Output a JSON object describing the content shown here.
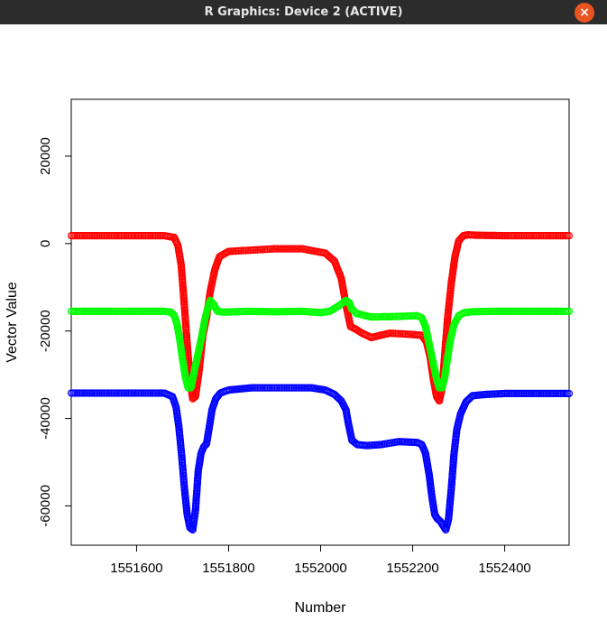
{
  "window": {
    "title": "R Graphics: Device 2 (ACTIVE)",
    "close_icon": "close-icon",
    "close_glyph": "×",
    "accent": "#e95420"
  },
  "chart_data": {
    "type": "scatter",
    "title": "",
    "xlabel": "Number",
    "ylabel": "Vector Value",
    "xlim": [
      1551458,
      1552540
    ],
    "ylim": [
      -69000,
      33000
    ],
    "xticks": [
      1551600,
      1551800,
      1552000,
      1552200,
      1552400
    ],
    "xtick_labels": [
      "1551600",
      "1551800",
      "1552000",
      "1552200",
      "1552400"
    ],
    "yticks": [
      -60000,
      -40000,
      -20000,
      0,
      20000
    ],
    "ytick_labels": [
      "-60000",
      "-40000",
      "-20000",
      "0",
      "20000"
    ],
    "marker": "open-circle",
    "series": [
      {
        "color": "#ff0000",
        "x": [
          1551458,
          1551660,
          1551682,
          1551690,
          1551697,
          1551703,
          1551710,
          1551716,
          1551722,
          1551728,
          1551736,
          1551744,
          1551752,
          1551760,
          1551770,
          1551780,
          1551800,
          1551850,
          1551900,
          1551960,
          1551990,
          1552010,
          1552030,
          1552045,
          1552055,
          1552065,
          1552075,
          1552090,
          1552110,
          1552150,
          1552200,
          1552220,
          1552230,
          1552238,
          1552245,
          1552252,
          1552258,
          1552264,
          1552270,
          1552276,
          1552284,
          1552292,
          1552300,
          1552310,
          1552320,
          1552340,
          1552400,
          1552540
        ],
        "y": [
          1800,
          1800,
          1400,
          -500,
          -5000,
          -13000,
          -23000,
          -31000,
          -35500,
          -35000,
          -29000,
          -21000,
          -17000,
          -11000,
          -6000,
          -3000,
          -1800,
          -1500,
          -1200,
          -1200,
          -1800,
          -2200,
          -4000,
          -8000,
          -14000,
          -19000,
          -19500,
          -20500,
          -21500,
          -20500,
          -20800,
          -21000,
          -22500,
          -26000,
          -31000,
          -35000,
          -36000,
          -33000,
          -25000,
          -17000,
          -9000,
          -3000,
          600,
          1800,
          2000,
          1900,
          1800,
          1800
        ]
      },
      {
        "color": "#00ff00",
        "x": [
          1551458,
          1551660,
          1551675,
          1551682,
          1551688,
          1551694,
          1551700,
          1551706,
          1551712,
          1551718,
          1551724,
          1551730,
          1551736,
          1551742,
          1551748,
          1551754,
          1551760,
          1551768,
          1551776,
          1551790,
          1551840,
          1551900,
          1551960,
          1552000,
          1552020,
          1552040,
          1552055,
          1552062,
          1552068,
          1552078,
          1552090,
          1552110,
          1552160,
          1552210,
          1552220,
          1552228,
          1552236,
          1552244,
          1552252,
          1552258,
          1552264,
          1552270,
          1552276,
          1552282,
          1552290,
          1552300,
          1552312,
          1552330,
          1552370,
          1552540
        ],
        "y": [
          -15500,
          -15500,
          -15700,
          -16500,
          -18500,
          -22000,
          -26500,
          -30500,
          -33000,
          -33000,
          -30000,
          -27000,
          -24000,
          -21000,
          -17500,
          -15000,
          -13000,
          -14000,
          -15500,
          -15700,
          -15500,
          -15600,
          -15500,
          -15800,
          -15500,
          -14200,
          -13000,
          -13500,
          -15000,
          -16000,
          -16300,
          -16800,
          -16700,
          -16500,
          -17000,
          -19000,
          -23000,
          -27000,
          -31000,
          -33000,
          -33000,
          -30500,
          -26000,
          -22000,
          -18500,
          -16500,
          -15800,
          -15600,
          -15500,
          -15500
        ]
      },
      {
        "color": "#0000ff",
        "x": [
          1551458,
          1551660,
          1551678,
          1551686,
          1551692,
          1551698,
          1551704,
          1551710,
          1551716,
          1551722,
          1551728,
          1551734,
          1551740,
          1551746,
          1551752,
          1551758,
          1551764,
          1551772,
          1551782,
          1551800,
          1551850,
          1551900,
          1551950,
          1551980,
          1552010,
          1552030,
          1552045,
          1552055,
          1552060,
          1552068,
          1552080,
          1552100,
          1552130,
          1552170,
          1552210,
          1552220,
          1552228,
          1552236,
          1552242,
          1552248,
          1552254,
          1552260,
          1552266,
          1552272,
          1552278,
          1552284,
          1552290,
          1552296,
          1552304,
          1552316,
          1552330,
          1552360,
          1552400,
          1552540
        ],
        "y": [
          -34200,
          -34200,
          -35000,
          -37500,
          -42000,
          -48500,
          -56000,
          -62000,
          -65000,
          -65500,
          -61000,
          -52000,
          -48000,
          -46500,
          -45800,
          -42000,
          -38000,
          -35500,
          -34200,
          -33500,
          -33000,
          -33000,
          -33000,
          -33000,
          -33500,
          -34500,
          -36000,
          -38000,
          -41000,
          -45000,
          -46000,
          -46200,
          -46000,
          -45300,
          -45500,
          -46000,
          -48000,
          -53000,
          -58000,
          -62000,
          -63000,
          -63500,
          -64500,
          -65500,
          -63000,
          -56000,
          -48000,
          -42500,
          -39000,
          -36200,
          -34800,
          -34500,
          -34300,
          -34300
        ]
      }
    ]
  }
}
